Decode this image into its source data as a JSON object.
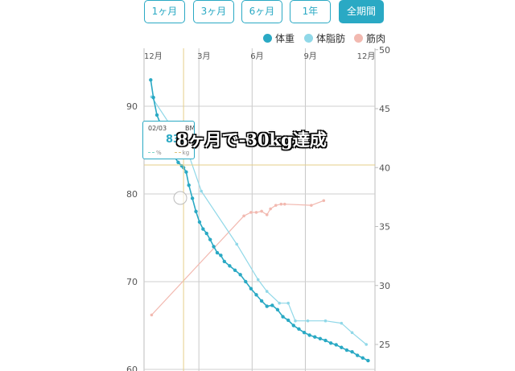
{
  "tabs": [
    "1ヶ月",
    "3ヶ月",
    "6ヶ月",
    "1年",
    "全期間"
  ],
  "active_tab": 4,
  "colors": {
    "weight": "#2aa9c4",
    "body_fat": "#90d8e8",
    "muscle": "#f2b9b0",
    "accent": "#2aa9c4",
    "crosshair": "#e6cf8a"
  },
  "chart_data": {
    "type": "line",
    "x_tick_labels": [
      "12月",
      "3月",
      "6月",
      "9月",
      "12月"
    ],
    "left_axis": {
      "ticks": [
        60,
        70,
        80,
        90
      ],
      "ylim": [
        60,
        93
      ]
    },
    "right_axis": {
      "ticks": [
        25,
        30,
        35,
        40,
        45,
        50
      ],
      "ylim": [
        24.5,
        50
      ]
    },
    "series": [
      {
        "name": "体重",
        "axis": "left",
        "x": [
          0.15,
          0.3,
          0.5,
          0.7,
          0.9,
          1.1,
          1.3,
          1.5,
          1.7,
          1.9,
          2.0,
          2.15,
          2.3,
          2.5,
          2.7,
          2.9,
          3.1,
          3.3,
          3.5,
          3.7,
          3.9,
          4.1,
          4.3,
          4.6,
          4.9,
          5.2,
          5.5,
          5.8,
          6.1,
          6.4,
          6.7,
          7.0,
          7.3,
          7.6,
          7.9,
          8.2,
          8.5,
          8.8,
          9.1,
          9.4,
          9.7,
          10.0,
          10.3,
          10.6,
          10.9,
          11.2,
          11.5,
          11.8,
          12.1,
          12.4
        ],
        "values": [
          93.0,
          91.0,
          89.0,
          88.0,
          87.0,
          86.0,
          85.0,
          84.2,
          83.6,
          83.2,
          83.0,
          82.5,
          81.0,
          79.5,
          78.0,
          76.8,
          76.0,
          75.5,
          74.8,
          74.0,
          73.3,
          73.0,
          72.3,
          71.8,
          71.3,
          70.8,
          70.0,
          69.2,
          68.5,
          67.8,
          67.2,
          67.3,
          66.8,
          66.0,
          65.6,
          65.0,
          64.6,
          64.2,
          63.9,
          63.7,
          63.5,
          63.3,
          63.0,
          62.8,
          62.5,
          62.2,
          62.0,
          61.6,
          61.3,
          61.0
        ]
      },
      {
        "name": "体脂肪",
        "axis": "right",
        "x": [
          0.2,
          1.3,
          2.2,
          3.0,
          5.0,
          6.2,
          6.7,
          7.4,
          7.9,
          8.3,
          9.0,
          10.0,
          10.9,
          11.5,
          12.3
        ],
        "values": [
          46.0,
          43.5,
          41.5,
          38.0,
          33.5,
          30.5,
          29.5,
          28.5,
          28.5,
          27.0,
          27.0,
          27.0,
          26.8,
          26.0,
          25.0
        ]
      },
      {
        "name": "筋肉",
        "axis": "right",
        "x": [
          0.2,
          5.4,
          5.8,
          6.1,
          6.4,
          6.7,
          6.9,
          7.2,
          7.5,
          7.7,
          9.2,
          9.9
        ],
        "values": [
          27.5,
          35.9,
          36.2,
          36.2,
          36.3,
          36.0,
          36.5,
          36.8,
          36.9,
          36.9,
          36.8,
          37.2
        ]
      }
    ],
    "crosshair_x": 2.0,
    "crosshair_y": 83.2
  },
  "tooltip": {
    "date": "02/03",
    "bmi": "BMI 29.8",
    "value": "83.",
    "percent_label": "%",
    "kg_label": "kg"
  },
  "overlay_text": "8ヶ月で-30kg達成"
}
